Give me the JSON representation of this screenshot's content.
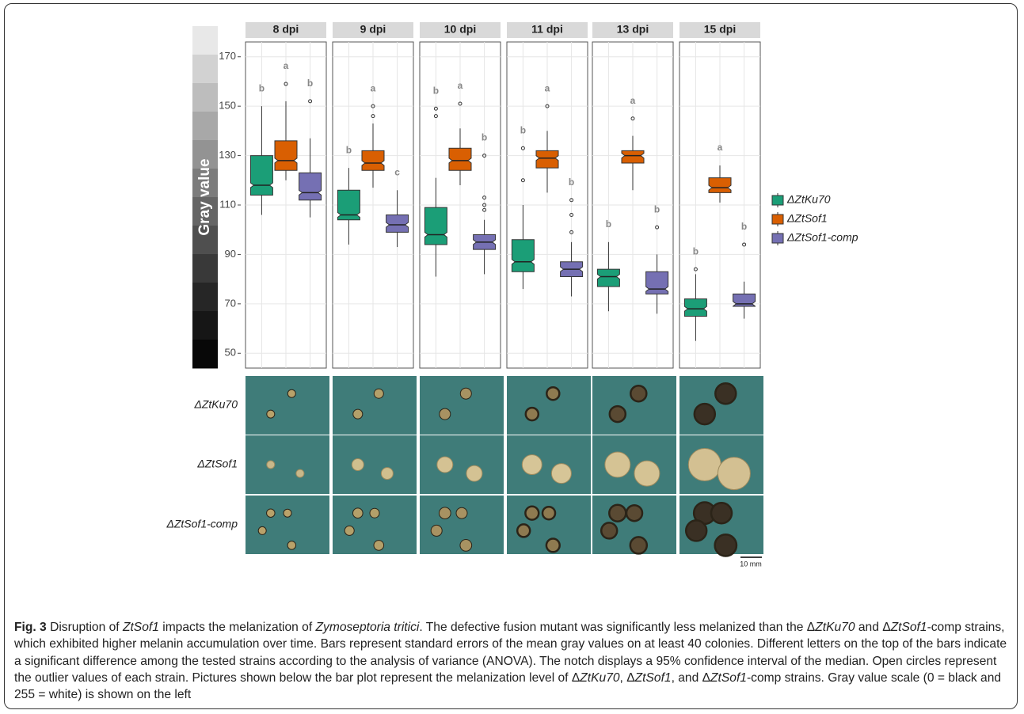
{
  "chart_data": {
    "type": "box",
    "ylabel": "Gray value",
    "facets": [
      "8 dpi",
      "9 dpi",
      "10 dpi",
      "11 dpi",
      "13 dpi",
      "15 dpi"
    ],
    "ylim": [
      44,
      176
    ],
    "yticks": [
      50,
      70,
      90,
      110,
      130,
      150,
      170
    ],
    "grid": true,
    "series": [
      {
        "name": "ΔZtKu70",
        "color": "#1b9e77",
        "letters": [
          "b",
          "b",
          "b",
          "b",
          "b",
          "b"
        ],
        "boxes": [
          {
            "whislo": 106,
            "q1": 114,
            "med": 118,
            "q3": 130,
            "whishi": 150,
            "fliers": []
          },
          {
            "whislo": 94,
            "q1": 104,
            "med": 106,
            "q3": 116,
            "whishi": 125,
            "fliers": []
          },
          {
            "whislo": 81,
            "q1": 94,
            "med": 98,
            "q3": 109,
            "whishi": 121,
            "fliers": [
              146,
              149
            ]
          },
          {
            "whislo": 76,
            "q1": 83,
            "med": 87,
            "q3": 96,
            "whishi": 110,
            "fliers": [
              120,
              133
            ]
          },
          {
            "whislo": 67,
            "q1": 77,
            "med": 81,
            "q3": 84,
            "whishi": 95,
            "fliers": []
          },
          {
            "whislo": 55,
            "q1": 65,
            "med": 68,
            "q3": 72,
            "whishi": 82,
            "fliers": [
              84
            ]
          }
        ]
      },
      {
        "name": "ΔZtSof1",
        "color": "#d95f02",
        "letters": [
          "a",
          "a",
          "a",
          "a",
          "a",
          "a"
        ],
        "boxes": [
          {
            "whislo": 120,
            "q1": 124,
            "med": 128,
            "q3": 136,
            "whishi": 152,
            "fliers": [
              159
            ]
          },
          {
            "whislo": 117,
            "q1": 124,
            "med": 127,
            "q3": 132,
            "whishi": 143,
            "fliers": [
              146,
              150
            ]
          },
          {
            "whislo": 118,
            "q1": 124,
            "med": 128,
            "q3": 133,
            "whishi": 141,
            "fliers": [
              151
            ]
          },
          {
            "whislo": 115,
            "q1": 125,
            "med": 129,
            "q3": 132,
            "whishi": 140,
            "fliers": [
              150
            ]
          },
          {
            "whislo": 116,
            "q1": 127,
            "med": 130,
            "q3": 132,
            "whishi": 138,
            "fliers": [
              145
            ]
          },
          {
            "whislo": 111,
            "q1": 115,
            "med": 117,
            "q3": 121,
            "whishi": 126,
            "fliers": []
          }
        ]
      },
      {
        "name": "ΔZtSof1-comp",
        "color": "#7570b3",
        "letters": [
          "b",
          "c",
          "b",
          "b",
          "b",
          "b"
        ],
        "boxes": [
          {
            "whislo": 105,
            "q1": 112,
            "med": 115,
            "q3": 123,
            "whishi": 137,
            "fliers": [
              152
            ]
          },
          {
            "whislo": 93,
            "q1": 99,
            "med": 102,
            "q3": 106,
            "whishi": 116,
            "fliers": []
          },
          {
            "whislo": 82,
            "q1": 92,
            "med": 95,
            "q3": 98,
            "whishi": 104,
            "fliers": [
              108,
              110,
              113,
              130
            ]
          },
          {
            "whislo": 73,
            "q1": 81,
            "med": 84,
            "q3": 87,
            "whishi": 95,
            "fliers": [
              99,
              106,
              112
            ]
          },
          {
            "whislo": 66,
            "q1": 74,
            "med": 76,
            "q3": 83,
            "whishi": 90,
            "fliers": [
              101
            ]
          },
          {
            "whislo": 64,
            "q1": 69,
            "med": 70,
            "q3": 74,
            "whishi": 79,
            "fliers": [
              94
            ]
          }
        ]
      }
    ]
  },
  "photos": {
    "row_labels": [
      "ΔZtKu70",
      "ΔZtSof1",
      "ΔZtSof1-comp"
    ],
    "scale_bar": "10 mm"
  },
  "caption": [
    "Fig. 3",
    " Disruption of ",
    "ZtSof1",
    " impacts the melanization of ",
    "Zymoseptoria tritici",
    ". The defective fusion mutant was significantly less melanized than the Δ",
    "ZtKu70",
    " and Δ",
    "ZtSof1",
    "-comp strains, which exhibited higher melanin accumulation over time. Bars represent standard errors of the mean gray values on at least 40 colonies. Different letters on the top of the bars indicate a significant difference among the tested strains according to the analysis of variance (ANOVA). The notch displays a 95% confidence interval of the median. Open circles represent the outlier values of each strain. Pictures shown below the bar plot represent the melanization level of Δ",
    "ZtKu70",
    ", Δ",
    "ZtSof1",
    ", and Δ",
    "ZtSof1",
    "-comp strains. Gray value scale (0 = black and 255 = white) is shown on the left"
  ]
}
